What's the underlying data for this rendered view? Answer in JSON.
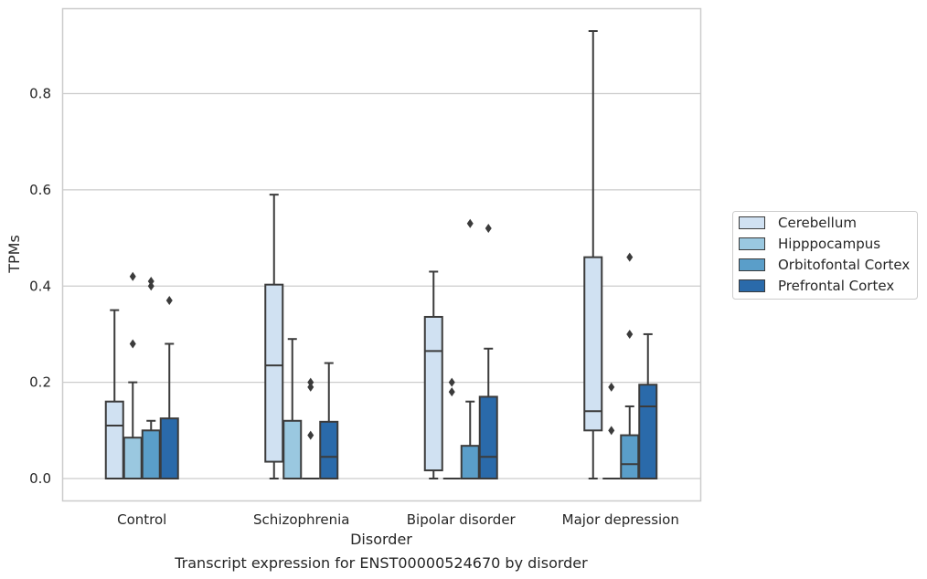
{
  "caption": "Transcript expression for ENST00000524670 by disorder",
  "chart_data": {
    "type": "boxplot",
    "title": "",
    "xlabel": "Disorder",
    "ylabel": "TPMs",
    "ylim": [
      -0.045,
      0.98
    ],
    "yticks": [
      "0.0",
      "0.2",
      "0.4",
      "0.6",
      "0.8"
    ],
    "grid": "horizontal",
    "legend_position": "right",
    "categories": [
      "Control",
      "Schizophrenia",
      "Bipolar disorder",
      "Major depression"
    ],
    "series": [
      {
        "name": "Cerebellum",
        "color": "#d0e1f2",
        "boxes": [
          {
            "q1": 0.0,
            "median": 0.11,
            "q3": 0.16,
            "whisker_low": 0.0,
            "whisker_high": 0.35,
            "outliers": []
          },
          {
            "q1": 0.035,
            "median": 0.235,
            "q3": 0.403,
            "whisker_low": 0.0,
            "whisker_high": 0.59,
            "outliers": []
          },
          {
            "q1": 0.017,
            "median": 0.265,
            "q3": 0.336,
            "whisker_low": 0.0,
            "whisker_high": 0.43,
            "outliers": []
          },
          {
            "q1": 0.1,
            "median": 0.14,
            "q3": 0.46,
            "whisker_low": 0.0,
            "whisker_high": 0.93,
            "outliers": []
          }
        ]
      },
      {
        "name": "Hipppocampus",
        "color": "#9ac8e0",
        "boxes": [
          {
            "q1": 0.0,
            "median": 0.0,
            "q3": 0.085,
            "whisker_low": 0.0,
            "whisker_high": 0.2,
            "outliers": [
              0.28,
              0.42
            ]
          },
          {
            "q1": 0.0,
            "median": 0.0,
            "q3": 0.12,
            "whisker_low": 0.0,
            "whisker_high": 0.29,
            "outliers": []
          },
          {
            "q1": 0.0,
            "median": 0.0,
            "q3": 0.0,
            "whisker_low": 0.0,
            "whisker_high": 0.0,
            "outliers": [
              0.18,
              0.2
            ]
          },
          {
            "q1": 0.0,
            "median": 0.0,
            "q3": 0.0,
            "whisker_low": 0.0,
            "whisker_high": 0.0,
            "outliers": [
              0.1,
              0.19
            ]
          }
        ]
      },
      {
        "name": "Orbitofontal Cortex",
        "color": "#5a9ec9",
        "boxes": [
          {
            "q1": 0.0,
            "median": 0.0,
            "q3": 0.1,
            "whisker_low": 0.0,
            "whisker_high": 0.12,
            "outliers": [
              0.4,
              0.41
            ]
          },
          {
            "q1": 0.0,
            "median": 0.0,
            "q3": 0.0,
            "whisker_low": 0.0,
            "whisker_high": 0.0,
            "outliers": [
              0.09,
              0.19,
              0.2
            ]
          },
          {
            "q1": 0.0,
            "median": 0.0,
            "q3": 0.068,
            "whisker_low": 0.0,
            "whisker_high": 0.16,
            "outliers": [
              0.53
            ]
          },
          {
            "q1": 0.0,
            "median": 0.03,
            "q3": 0.09,
            "whisker_low": 0.0,
            "whisker_high": 0.15,
            "outliers": [
              0.3,
              0.46
            ]
          }
        ]
      },
      {
        "name": "Prefrontal Cortex",
        "color": "#2a6aaa",
        "boxes": [
          {
            "q1": 0.0,
            "median": 0.0,
            "q3": 0.125,
            "whisker_low": 0.0,
            "whisker_high": 0.28,
            "outliers": [
              0.37
            ]
          },
          {
            "q1": 0.0,
            "median": 0.045,
            "q3": 0.118,
            "whisker_low": 0.0,
            "whisker_high": 0.24,
            "outliers": []
          },
          {
            "q1": 0.0,
            "median": 0.045,
            "q3": 0.17,
            "whisker_low": 0.0,
            "whisker_high": 0.27,
            "outliers": [
              0.52
            ]
          },
          {
            "q1": 0.0,
            "median": 0.15,
            "q3": 0.195,
            "whisker_low": 0.0,
            "whisker_high": 0.3,
            "outliers": []
          }
        ]
      }
    ]
  }
}
